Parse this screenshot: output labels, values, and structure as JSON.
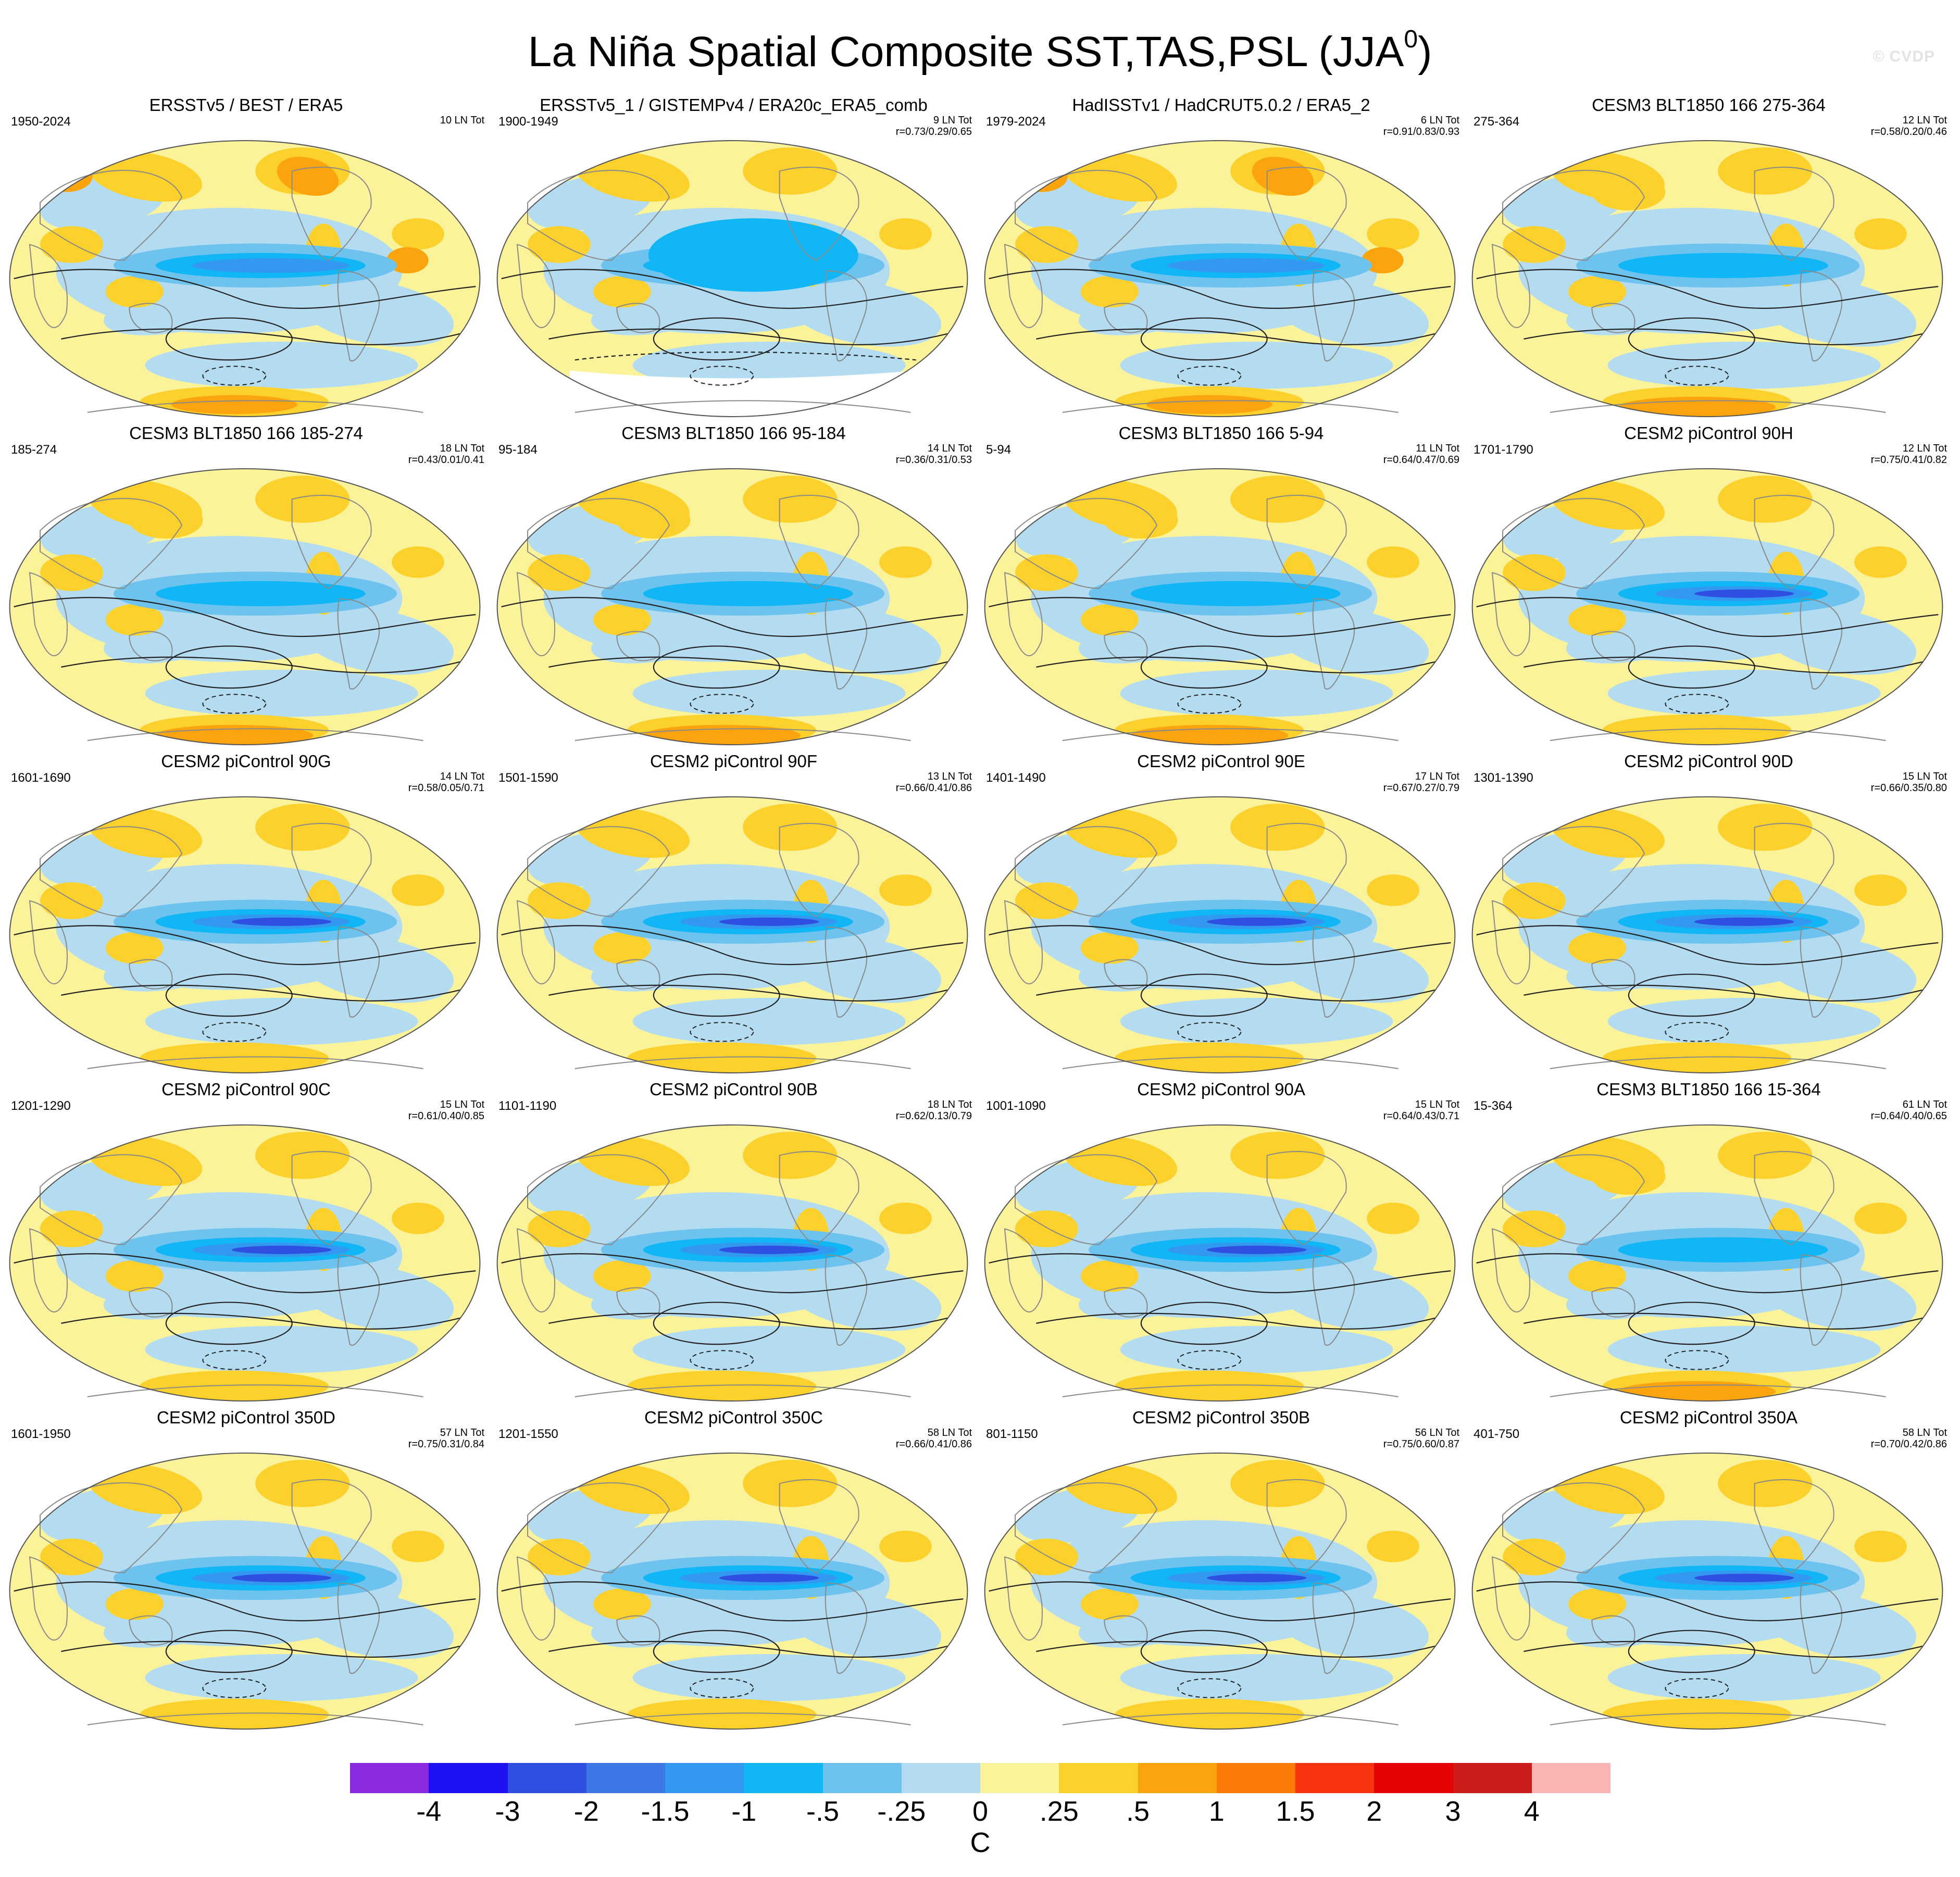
{
  "page": {
    "title_main": "La Niña Spatial Composite SST,TAS,PSL (JJA",
    "title_sup": "0",
    "title_close": ")",
    "watermark": "© CVDP"
  },
  "chart_data": {
    "type": "heatmap",
    "description_kind": "panel grid of global map composites",
    "units": "C",
    "colorbar_labels": [
      "-4",
      "-3",
      "-2",
      "-1.5",
      "-1",
      "-.5",
      "-.25",
      "0",
      ".25",
      ".5",
      "1",
      "1.5",
      "2",
      "3",
      "4"
    ],
    "colorbar_colors": [
      "#8a2be2",
      "#1e12f2",
      "#2f4fe0",
      "#3d79e6",
      "#3399f0",
      "#11b6f5",
      "#6dc3ee",
      "#b3dcf1",
      "#fbf39a",
      "#fdd12b",
      "#fba40e",
      "#fb7a08",
      "#f8340e",
      "#e40404",
      "#cd1c1c",
      "#fbb4b4"
    ],
    "panels": [
      {
        "title": "ERSSTv5 / BEST / ERA5",
        "period": "1950-2024",
        "count": "10 LN Tot",
        "r": "",
        "feature": "obs_modern"
      },
      {
        "title": "ERSSTv5_1 / GISTEMPv4 / ERA20c_ERA5_comb",
        "period": "1900-1949",
        "count": "9 LN Tot",
        "r": "r=0.73/0.29/0.65",
        "feature": "obs_early"
      },
      {
        "title": "HadISSTv1 / HadCRUT5.0.2 / ERA5_2",
        "period": "1979-2024",
        "count": "6 LN Tot",
        "r": "r=0.91/0.83/0.93",
        "feature": "obs_recent"
      },
      {
        "title": "CESM3 BLT1850 166 275-364",
        "period": "275-364",
        "count": "12 LN Tot",
        "r": "r=0.58/0.20/0.46",
        "feature": "model_weak"
      },
      {
        "title": "CESM3 BLT1850 166 185-274",
        "period": "185-274",
        "count": "18 LN Tot",
        "r": "r=0.43/0.01/0.41",
        "feature": "model_weak"
      },
      {
        "title": "CESM3 BLT1850 166 95-184",
        "period": "95-184",
        "count": "14 LN Tot",
        "r": "r=0.36/0.31/0.53",
        "feature": "model_weak"
      },
      {
        "title": "CESM3 BLT1850 166 5-94",
        "period": "5-94",
        "count": "11 LN Tot",
        "r": "r=0.64/0.47/0.69",
        "feature": "model_weak"
      },
      {
        "title": "CESM2 piControl 90H",
        "period": "1701-1790",
        "count": "12 LN Tot",
        "r": "r=0.75/0.41/0.82",
        "feature": "model_strong"
      },
      {
        "title": "CESM2 piControl 90G",
        "period": "1601-1690",
        "count": "14 LN Tot",
        "r": "r=0.58/0.05/0.71",
        "feature": "model_strong"
      },
      {
        "title": "CESM2 piControl 90F",
        "period": "1501-1590",
        "count": "13 LN Tot",
        "r": "r=0.66/0.41/0.86",
        "feature": "model_strong"
      },
      {
        "title": "CESM2 piControl 90E",
        "period": "1401-1490",
        "count": "17 LN Tot",
        "r": "r=0.67/0.27/0.79",
        "feature": "model_strong"
      },
      {
        "title": "CESM2 piControl 90D",
        "period": "1301-1390",
        "count": "15 LN Tot",
        "r": "r=0.66/0.35/0.80",
        "feature": "model_strong"
      },
      {
        "title": "CESM2 piControl 90C",
        "period": "1201-1290",
        "count": "15 LN Tot",
        "r": "r=0.61/0.40/0.85",
        "feature": "model_strong"
      },
      {
        "title": "CESM2 piControl 90B",
        "period": "1101-1190",
        "count": "18 LN Tot",
        "r": "r=0.62/0.13/0.79",
        "feature": "model_strong"
      },
      {
        "title": "CESM2 piControl 90A",
        "period": "1001-1090",
        "count": "15 LN Tot",
        "r": "r=0.64/0.43/0.71",
        "feature": "model_strong"
      },
      {
        "title": "CESM3 BLT1850 166 15-364",
        "period": "15-364",
        "count": "61 LN Tot",
        "r": "r=0.64/0.40/0.65",
        "feature": "model_weak"
      },
      {
        "title": "CESM2 piControl 350D",
        "period": "1601-1950",
        "count": "57 LN Tot",
        "r": "r=0.75/0.31/0.84",
        "feature": "model_strong"
      },
      {
        "title": "CESM2 piControl 350C",
        "period": "1201-1550",
        "count": "58 LN Tot",
        "r": "r=0.66/0.41/0.86",
        "feature": "model_strong"
      },
      {
        "title": "CESM2 piControl 350B",
        "period": "801-1150",
        "count": "56 LN Tot",
        "r": "r=0.75/0.60/0.87",
        "feature": "model_strong"
      },
      {
        "title": "CESM2 piControl 350A",
        "period": "401-750",
        "count": "58 LN Tot",
        "r": "r=0.70/0.42/0.86",
        "feature": "model_strong"
      }
    ]
  }
}
